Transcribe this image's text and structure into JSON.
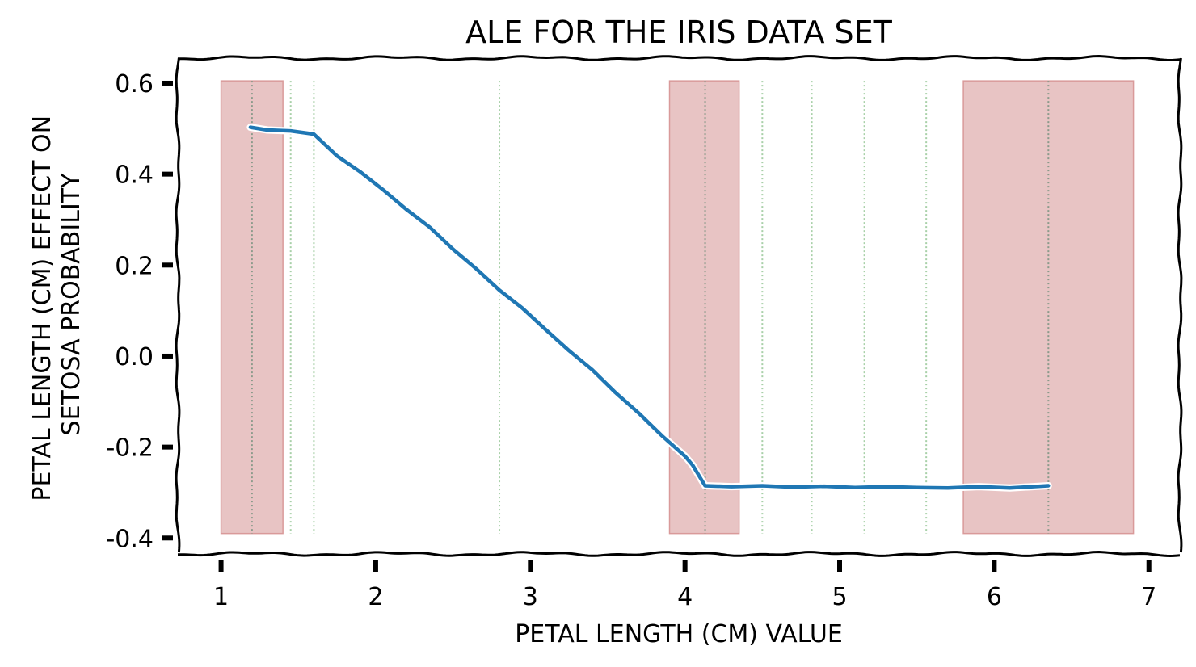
{
  "chart_data": {
    "type": "line",
    "title": "ALE FOR THE IRIS DATA SET",
    "xlabel": "PETAL LENGTH (CM) VALUE",
    "ylabel_lines": [
      "PETAL LENGTH (CM) EFFECT ON",
      "SETOSA PROBABILITY"
    ],
    "xlim": [
      0.72,
      7.2
    ],
    "ylim": [
      -0.435,
      0.655
    ],
    "x_ticks": [
      1,
      2,
      3,
      4,
      5,
      6,
      7
    ],
    "x_tick_labels": [
      "1",
      "2",
      "3",
      "4",
      "5",
      "6",
      "7"
    ],
    "y_ticks": [
      0.6,
      0.4,
      0.2,
      0.0,
      -0.2,
      -0.4
    ],
    "y_tick_labels": [
      "0.6",
      "0.4",
      "0.2",
      "0.0",
      "-0.2",
      "-0.4"
    ],
    "grid": false,
    "series": [
      {
        "color": "#1f77b4",
        "x": [
          1.19,
          1.3,
          1.45,
          1.6,
          1.75,
          1.9,
          2.05,
          2.2,
          2.35,
          2.5,
          2.65,
          2.8,
          2.95,
          3.1,
          3.25,
          3.4,
          3.55,
          3.7,
          3.85,
          4.0,
          4.05,
          4.13,
          4.3,
          4.5,
          4.7,
          4.9,
          5.1,
          5.3,
          5.5,
          5.7,
          5.9,
          6.1,
          6.35
        ],
        "y": [
          0.503,
          0.497,
          0.495,
          0.488,
          0.44,
          0.405,
          0.365,
          0.322,
          0.283,
          0.235,
          0.192,
          0.145,
          0.105,
          0.058,
          0.012,
          -0.03,
          -0.08,
          -0.125,
          -0.175,
          -0.22,
          -0.24,
          -0.285,
          -0.287,
          -0.285,
          -0.288,
          -0.286,
          -0.289,
          -0.287,
          -0.289,
          -0.29,
          -0.287,
          -0.29,
          -0.285
        ]
      }
    ],
    "shaded_regions": [
      {
        "x0": 1.0,
        "x1": 1.4,
        "y0": -0.39,
        "y1": 0.605,
        "color": "#e8c4c4"
      },
      {
        "x0": 3.9,
        "x1": 4.35,
        "y0": -0.39,
        "y1": 0.605,
        "color": "#e8c4c4"
      },
      {
        "x0": 5.8,
        "x1": 6.9,
        "y0": -0.39,
        "y1": 0.605,
        "color": "#e8c4c4"
      }
    ],
    "vertical_lines": [
      {
        "x": 1.2,
        "color": "#8a9a8a"
      },
      {
        "x": 1.45,
        "color": "#a8d0a8"
      },
      {
        "x": 1.6,
        "color": "#a8d0a8"
      },
      {
        "x": 2.8,
        "color": "#a8d0a8"
      },
      {
        "x": 4.13,
        "color": "#8a9a8a"
      },
      {
        "x": 4.5,
        "color": "#a8d0a8"
      },
      {
        "x": 4.82,
        "color": "#a8d0a8"
      },
      {
        "x": 5.16,
        "color": "#a8d0a8"
      },
      {
        "x": 5.56,
        "color": "#a8d0a8"
      },
      {
        "x": 6.35,
        "color": "#8a9a8a"
      }
    ]
  }
}
